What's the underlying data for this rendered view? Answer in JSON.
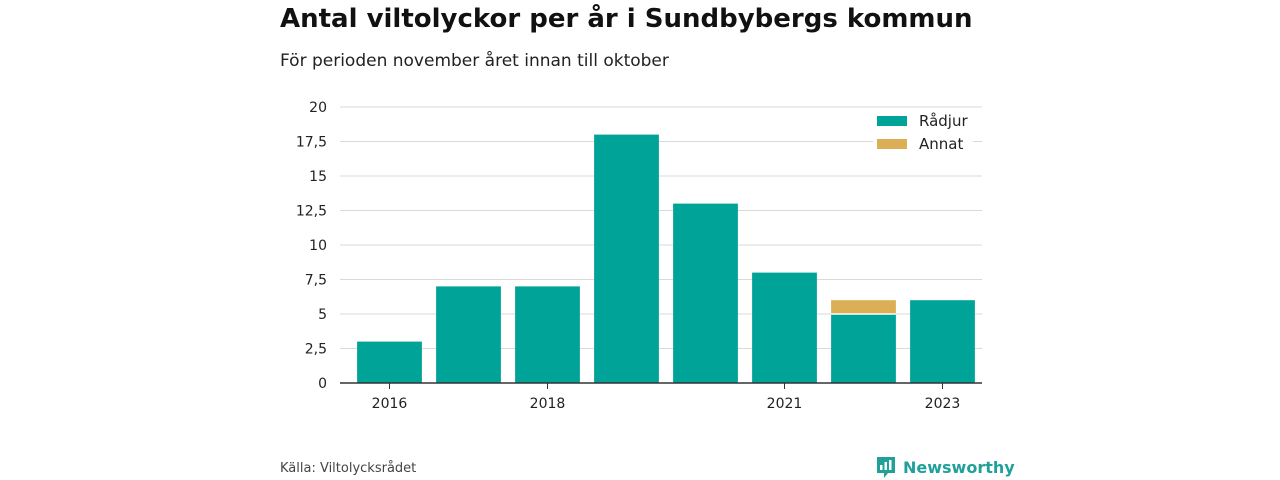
{
  "header": {
    "title": "Antal viltolyckor per år i Sundbybergs kommun",
    "subtitle": "För perioden november året innan till oktober"
  },
  "footer": {
    "source": "Källa: Viltolycksrådet",
    "brand": "Newsworthy",
    "brand_icon": "newsworthy-logo-icon"
  },
  "colors": {
    "radjur": "#00a398",
    "annat": "#dcae55",
    "grid": "#d9d9d9",
    "axis": "#333333",
    "brand": "#21a09a"
  },
  "chart_data": {
    "type": "bar",
    "stacked": true,
    "categories": [
      "2016",
      "2017",
      "2018",
      "2019",
      "2020",
      "2021",
      "2022",
      "2023"
    ],
    "x_tick_labels": [
      "2016",
      "",
      "2018",
      "",
      "",
      "2021",
      "",
      "2023"
    ],
    "series": [
      {
        "name": "Rådjur",
        "color": "#00a398",
        "values": [
          3,
          7,
          7,
          18,
          13,
          8,
          5,
          6
        ]
      },
      {
        "name": "Annat",
        "color": "#dcae55",
        "values": [
          0,
          0,
          0,
          0,
          0,
          0,
          1,
          0
        ]
      }
    ],
    "ylim": [
      0,
      20
    ],
    "y_ticks": [
      "0",
      "2,5",
      "5",
      "7,5",
      "10",
      "12,5",
      "15",
      "17,5",
      "20"
    ],
    "y_tick_values": [
      0,
      2.5,
      5,
      7.5,
      10,
      12.5,
      15,
      17.5,
      20
    ],
    "grid": true,
    "legend_position": "top-right"
  }
}
